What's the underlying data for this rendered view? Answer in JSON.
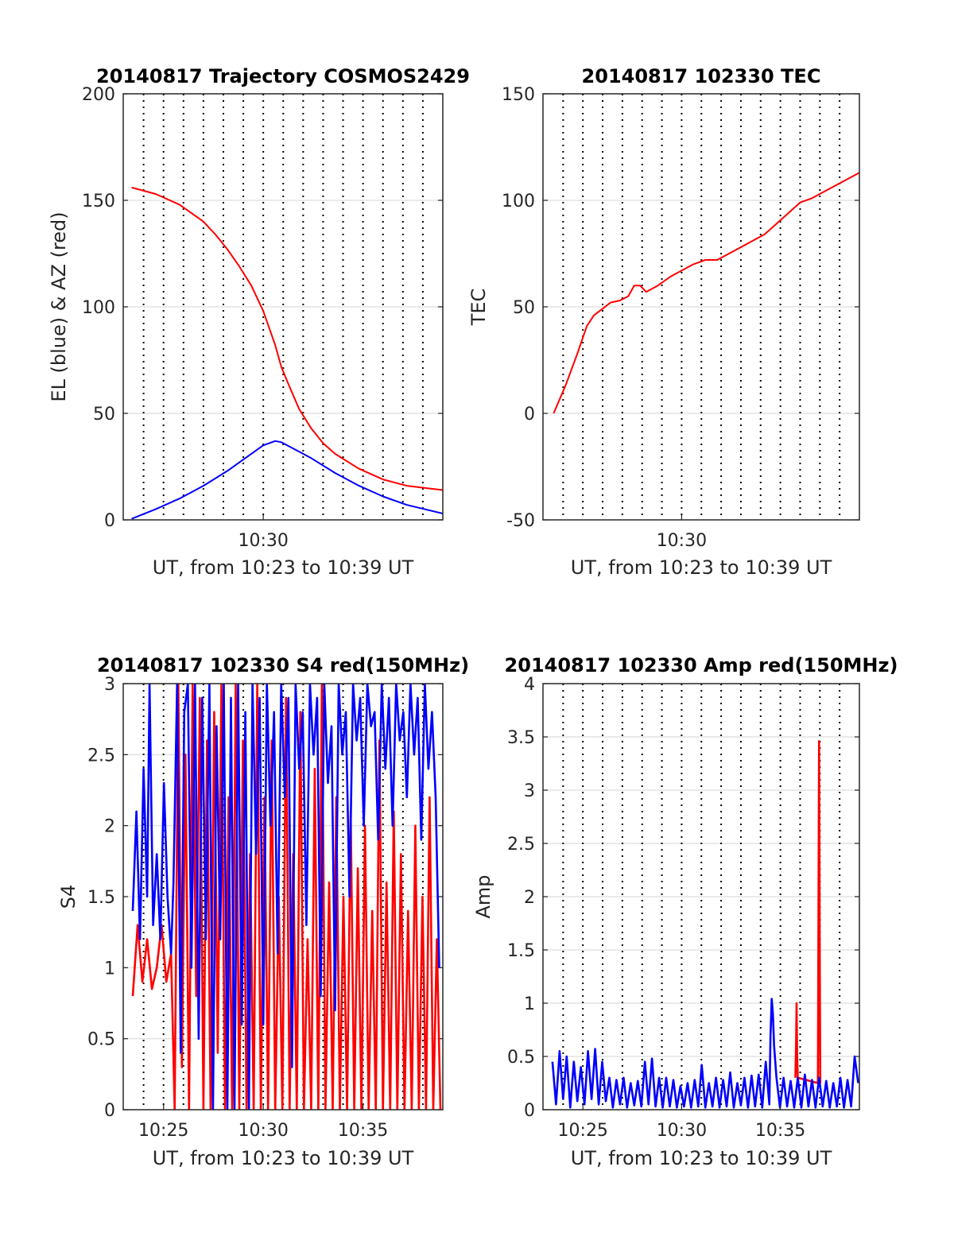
{
  "panels": [
    {
      "id": "trajectory",
      "title": "20140817 Trajectory COSMOS2429",
      "xlabel": "UT, from 10:23 to 10:39 UT",
      "ylabel": "EL (blue) & AZ (red)",
      "xlim": [
        10.383,
        10.65
      ],
      "ylim": [
        0,
        200
      ],
      "yticks": [
        "0",
        "50",
        "100",
        "150",
        "200"
      ],
      "xtick_labels": [
        {
          "value": 10.5,
          "label": "10:30"
        }
      ]
    },
    {
      "id": "tec",
      "title": "20140817 102330 TEC",
      "xlabel": "UT, from 10:23 to 10:39 UT",
      "ylabel": "TEC",
      "xlim": [
        10.383,
        10.65
      ],
      "ylim": [
        -50,
        150
      ],
      "yticks": [
        "-50",
        "0",
        "50",
        "100",
        "150"
      ],
      "xtick_labels": [
        {
          "value": 10.5,
          "label": "10:30"
        }
      ]
    },
    {
      "id": "s4",
      "title": "20140817 102330 S4 red(150MHz)",
      "xlabel": "UT, from 10:23 to 10:39 UT",
      "ylabel": "S4",
      "xlim": [
        10.383,
        10.65
      ],
      "ylim": [
        0,
        3
      ],
      "yticks": [
        "0",
        "0.5",
        "1",
        "1.5",
        "2",
        "2.5",
        "3"
      ],
      "xtick_labels": [
        {
          "value": 10.4167,
          "label": "10:25"
        },
        {
          "value": 10.5,
          "label": "10:30"
        },
        {
          "value": 10.5833,
          "label": "10:35"
        }
      ]
    },
    {
      "id": "amp",
      "title": "20140817 102330 Amp red(150MHz)",
      "xlabel": "UT, from 10:23 to 10:39 UT",
      "ylabel": "Amp",
      "xlim": [
        10.383,
        10.65
      ],
      "ylim": [
        0,
        4
      ],
      "yticks": [
        "0",
        "0.5",
        "1",
        "1.5",
        "2",
        "2.5",
        "3",
        "3.5",
        "4"
      ],
      "xtick_labels": [
        {
          "value": 10.4167,
          "label": "10:25"
        },
        {
          "value": 10.5,
          "label": "10:30"
        },
        {
          "value": 10.5833,
          "label": "10:35"
        }
      ]
    }
  ],
  "chart_data": [
    {
      "type": "line",
      "title": "20140817 Trajectory COSMOS2429",
      "xlabel": "UT, from 10:23 to 10:39 UT",
      "ylabel": "EL (blue) & AZ (red)",
      "xlim": [
        10.383,
        10.65
      ],
      "ylim": [
        0,
        200
      ],
      "grid": true,
      "series": [
        {
          "color": "#ff0000",
          "x": [
            10.39,
            10.41,
            10.43,
            10.45,
            10.46,
            10.47,
            10.48,
            10.49,
            10.5,
            10.51,
            10.515,
            10.52,
            10.53,
            10.54,
            10.55,
            10.56,
            10.58,
            10.6,
            10.62,
            10.65
          ],
          "y": [
            156,
            153,
            148,
            140,
            134,
            127,
            119,
            110,
            98,
            82,
            72,
            65,
            52,
            43,
            36,
            31,
            24,
            19,
            16,
            14
          ]
        },
        {
          "color": "#0000ff",
          "x": [
            10.39,
            10.41,
            10.43,
            10.45,
            10.47,
            10.49,
            10.5,
            10.51,
            10.515,
            10.52,
            10.54,
            10.56,
            10.58,
            10.6,
            10.62,
            10.65
          ],
          "y": [
            0.5,
            5,
            10,
            16,
            23,
            31,
            35,
            37,
            36.5,
            35,
            29,
            22,
            16,
            11,
            7,
            3
          ]
        }
      ]
    },
    {
      "type": "line",
      "title": "20140817 102330 TEC",
      "xlabel": "UT, from 10:23 to 10:39 UT",
      "ylabel": "TEC",
      "xlim": [
        10.383,
        10.65
      ],
      "ylim": [
        -50,
        150
      ],
      "grid": true,
      "series": [
        {
          "color": "#ff0000",
          "x": [
            10.392,
            10.402,
            10.412,
            10.42,
            10.426,
            10.433,
            10.44,
            10.448,
            10.455,
            10.46,
            10.465,
            10.47,
            10.48,
            10.49,
            10.5,
            10.51,
            10.52,
            10.53,
            10.54,
            10.55,
            10.56,
            10.57,
            10.58,
            10.59,
            10.6,
            10.61,
            10.62,
            10.63,
            10.64,
            10.65
          ],
          "y": [
            0,
            13,
            28,
            41,
            46,
            49,
            52,
            53,
            55,
            60,
            60,
            57,
            60,
            64,
            67,
            70,
            72,
            72,
            75,
            78,
            81,
            84,
            89,
            94,
            99,
            101,
            104,
            107,
            110,
            113
          ]
        }
      ]
    },
    {
      "type": "line",
      "title": "20140817 102330 S4 red(150MHz)",
      "xlabel": "UT, from 10:23 to 10:39 UT",
      "ylabel": "S4",
      "xlim": [
        10.383,
        10.65
      ],
      "ylim": [
        0,
        3
      ],
      "grid": true,
      "series": [
        {
          "color": "#ff0000",
          "x": [
            10.391,
            10.395,
            10.399,
            10.403,
            10.407,
            10.411,
            10.415,
            10.419,
            10.423,
            10.426,
            10.429,
            10.432,
            10.435,
            10.438,
            10.441,
            10.444,
            10.447,
            10.45,
            10.453,
            10.456,
            10.459,
            10.462,
            10.465,
            10.468,
            10.471,
            10.474,
            10.477,
            10.48,
            10.483,
            10.486,
            10.489,
            10.492,
            10.495,
            10.498,
            10.501,
            10.504,
            10.507,
            10.51,
            10.513,
            10.516,
            10.519,
            10.522,
            10.525,
            10.528,
            10.531,
            10.534,
            10.537,
            10.54,
            10.543,
            10.546,
            10.549,
            10.552,
            10.555,
            10.558,
            10.561,
            10.564,
            10.567,
            10.57,
            10.573,
            10.576,
            10.579,
            10.582,
            10.585,
            10.588,
            10.591,
            10.594,
            10.597,
            10.6,
            10.603,
            10.606,
            10.609,
            10.612,
            10.615,
            10.618,
            10.621,
            10.624,
            10.627,
            10.63,
            10.633,
            10.636,
            10.639,
            10.642,
            10.645,
            10.648
          ],
          "y": [
            0.8,
            1.3,
            0.9,
            1.2,
            0.85,
            1.0,
            1.3,
            0.9,
            1.1,
            0.0,
            3.0,
            0.3,
            2.5,
            0.0,
            3.0,
            0.8,
            2.9,
            0.0,
            2.6,
            0.0,
            2.8,
            0.4,
            3.0,
            0.0,
            2.2,
            0.0,
            3.0,
            0.0,
            2.6,
            0.0,
            1.8,
            0.0,
            3.0,
            0.0,
            2.2,
            0.0,
            2.6,
            0.0,
            1.5,
            0.0,
            2.9,
            0.0,
            1.8,
            0.0,
            2.8,
            0.0,
            1.2,
            0.0,
            2.4,
            0.0,
            3.0,
            0.0,
            1.6,
            0.0,
            2.2,
            0.0,
            1.5,
            0.0,
            2.1,
            0.0,
            1.7,
            0.0,
            2.0,
            0.0,
            1.4,
            0.0,
            2.6,
            0.0,
            1.6,
            0.0,
            2.1,
            0.0,
            1.8,
            0.0,
            1.4,
            0.0,
            2.0,
            0.0,
            1.5,
            0.0,
            2.2,
            0.0,
            1.2,
            0.0
          ]
        },
        {
          "color": "#0000ff",
          "x": [
            10.391,
            10.394,
            10.397,
            10.4,
            10.403,
            10.405,
            10.408,
            10.411,
            10.414,
            10.417,
            10.42,
            10.423,
            10.425,
            10.428,
            10.431,
            10.434,
            10.437,
            10.44,
            10.443,
            10.446,
            10.449,
            10.452,
            10.455,
            10.458,
            10.461,
            10.464,
            10.467,
            10.47,
            10.473,
            10.476,
            10.479,
            10.482,
            10.485,
            10.488,
            10.491,
            10.494,
            10.497,
            10.5,
            10.503,
            10.506,
            10.509,
            10.512,
            10.515,
            10.518,
            10.521,
            10.524,
            10.527,
            10.53,
            10.533,
            10.536,
            10.539,
            10.542,
            10.545,
            10.548,
            10.551,
            10.554,
            10.557,
            10.56,
            10.563,
            10.566,
            10.569,
            10.572,
            10.575,
            10.578,
            10.581,
            10.584,
            10.587,
            10.59,
            10.593,
            10.596,
            10.599,
            10.602,
            10.605,
            10.608,
            10.611,
            10.614,
            10.617,
            10.62,
            10.623,
            10.626,
            10.629,
            10.632,
            10.635,
            10.638,
            10.641,
            10.644,
            10.647
          ],
          "y": [
            1.4,
            2.1,
            1.2,
            2.4,
            1.5,
            3.0,
            1.3,
            1.8,
            1.2,
            2.3,
            1.5,
            1.1,
            1.6,
            3.0,
            0.4,
            2.8,
            3.0,
            1.0,
            3.0,
            0.5,
            2.9,
            1.2,
            3.0,
            0.0,
            2.7,
            1.2,
            3.0,
            0.0,
            2.9,
            0.0,
            3.0,
            0.6,
            2.8,
            0.0,
            3.0,
            1.8,
            2.9,
            0.6,
            3.0,
            2.0,
            2.8,
            1.1,
            3.0,
            2.2,
            2.9,
            0.3,
            3.0,
            2.4,
            2.8,
            1.3,
            3.0,
            2.5,
            2.9,
            0.8,
            3.0,
            2.3,
            2.7,
            0.7,
            3.0,
            2.5,
            2.8,
            1.5,
            3.0,
            2.6,
            2.9,
            2.0,
            3.0,
            2.7,
            2.8,
            1.9,
            3.0,
            2.4,
            2.9,
            2.0,
            3.0,
            2.6,
            2.8,
            2.2,
            3.0,
            2.5,
            2.9,
            1.9,
            3.0,
            2.4,
            2.8,
            2.2,
            1.0
          ]
        }
      ]
    },
    {
      "type": "line",
      "title": "20140817 102330 Amp red(150MHz)",
      "xlabel": "UT, from 10:23 to 10:39 UT",
      "ylabel": "Amp",
      "xlim": [
        10.383,
        10.65
      ],
      "ylim": [
        0,
        4
      ],
      "grid": true,
      "series": [
        {
          "color": "#ff0000",
          "x": [
            10.596,
            10.5965,
            10.597,
            10.5975,
            10.598,
            10.615,
            10.6155,
            10.616,
            10.6165,
            10.617
          ],
          "y": [
            0.3,
            0.6,
            1.0,
            0.5,
            0.3,
            0.25,
            2.0,
            3.46,
            1.5,
            0.25
          ]
        },
        {
          "color": "#0000ff",
          "x": [
            10.391,
            10.394,
            10.397,
            10.4,
            10.403,
            10.406,
            10.409,
            10.412,
            10.415,
            10.418,
            10.421,
            10.424,
            10.427,
            10.43,
            10.433,
            10.436,
            10.439,
            10.442,
            10.445,
            10.448,
            10.451,
            10.454,
            10.457,
            10.46,
            10.463,
            10.466,
            10.469,
            10.472,
            10.475,
            10.478,
            10.481,
            10.484,
            10.487,
            10.49,
            10.493,
            10.496,
            10.499,
            10.502,
            10.505,
            10.508,
            10.511,
            10.514,
            10.517,
            10.52,
            10.523,
            10.526,
            10.529,
            10.532,
            10.535,
            10.538,
            10.541,
            10.544,
            10.547,
            10.55,
            10.553,
            10.556,
            10.559,
            10.562,
            10.565,
            10.568,
            10.571,
            10.574,
            10.575,
            10.576,
            10.577,
            10.578,
            10.58,
            10.583,
            10.586,
            10.589,
            10.592,
            10.595,
            10.598,
            10.601,
            10.604,
            10.607,
            10.61,
            10.613,
            10.616,
            10.619,
            10.622,
            10.625,
            10.628,
            10.631,
            10.634,
            10.637,
            10.64,
            10.643,
            10.646,
            10.649
          ],
          "y": [
            0.45,
            0.05,
            0.55,
            0.1,
            0.5,
            0.02,
            0.45,
            0.08,
            0.4,
            0.05,
            0.55,
            0.1,
            0.57,
            0.05,
            0.45,
            0.08,
            0.3,
            0.02,
            0.28,
            0.05,
            0.3,
            0.02,
            0.25,
            0.04,
            0.27,
            0.03,
            0.45,
            0.05,
            0.48,
            0.03,
            0.3,
            0.02,
            0.3,
            0.03,
            0.28,
            0.02,
            0.22,
            0.03,
            0.25,
            0.02,
            0.28,
            0.03,
            0.42,
            0.02,
            0.25,
            0.03,
            0.3,
            0.02,
            0.28,
            0.03,
            0.35,
            0.02,
            0.25,
            0.04,
            0.3,
            0.02,
            0.32,
            0.03,
            0.33,
            0.02,
            0.45,
            0.05,
            0.7,
            1.04,
            0.9,
            0.6,
            0.3,
            0.02,
            0.3,
            0.03,
            0.27,
            0.02,
            0.3,
            0.02,
            0.33,
            0.03,
            0.28,
            0.02,
            0.3,
            0.03,
            0.27,
            0.02,
            0.25,
            0.03,
            0.3,
            0.02,
            0.28,
            0.03,
            0.5,
            0.25
          ]
        }
      ]
    }
  ]
}
